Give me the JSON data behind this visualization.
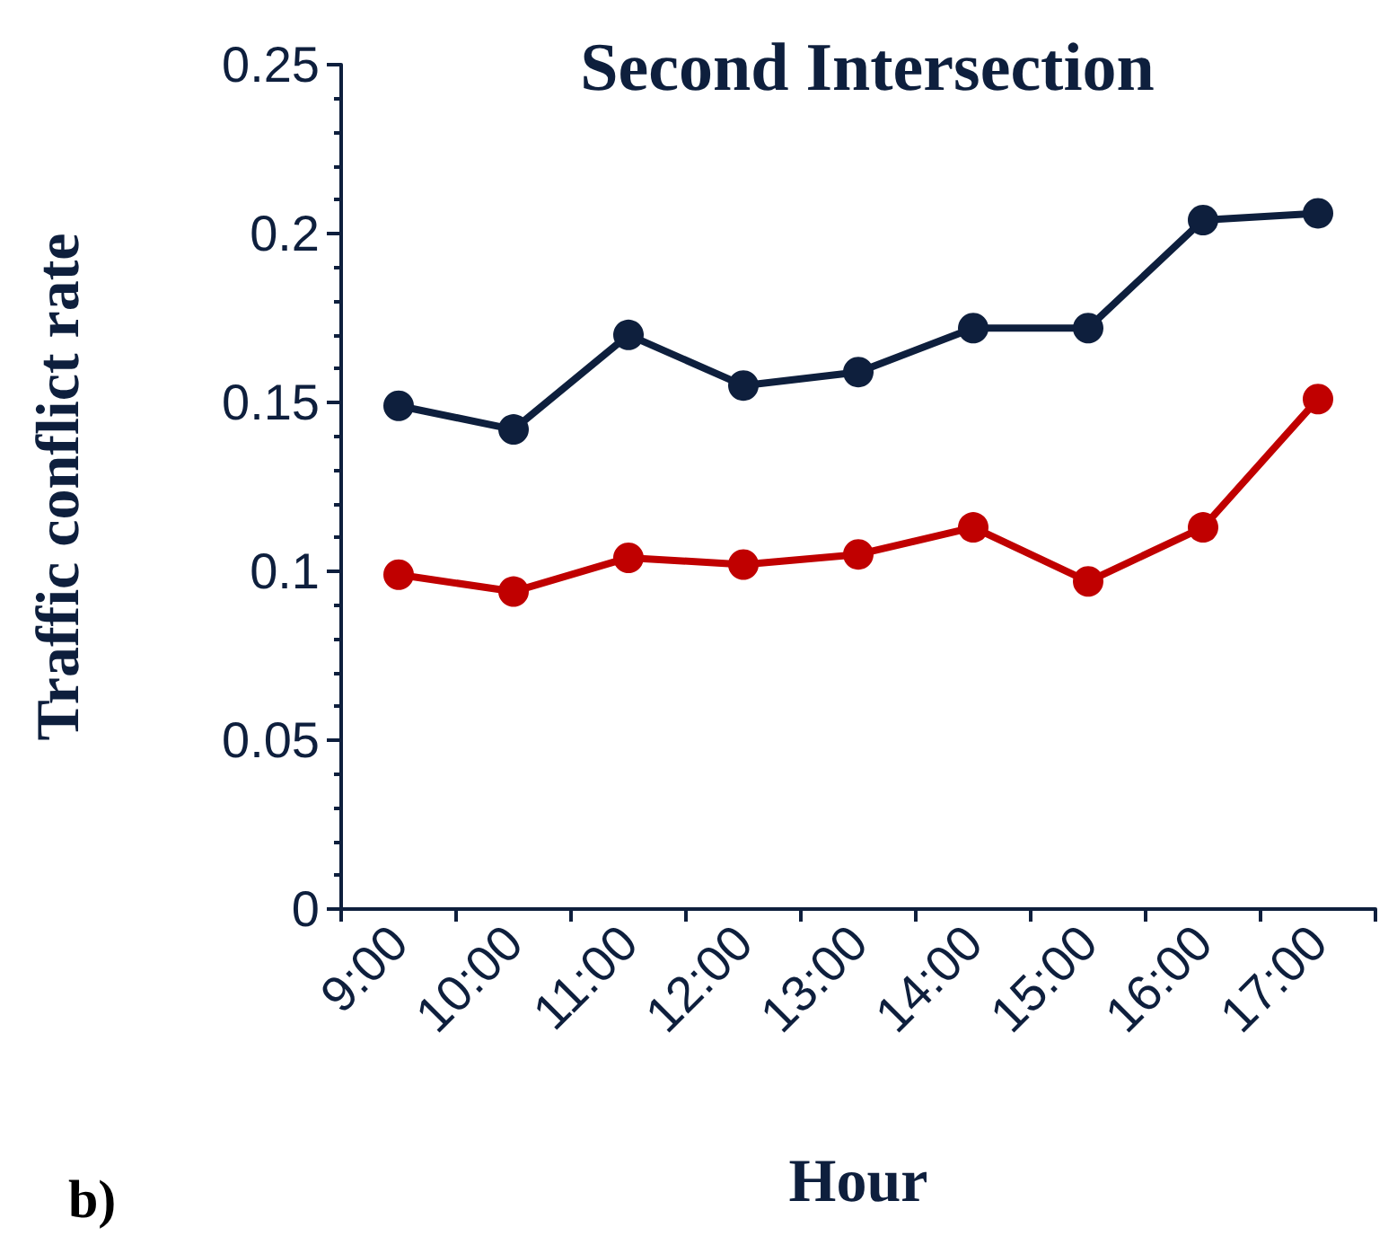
{
  "chart_data": {
    "type": "line",
    "title": "Second Intersection",
    "xlabel": "Hour",
    "ylabel": "Traffic conflict rate",
    "categories": [
      "9:00",
      "10:00",
      "11:00",
      "12:00",
      "13:00",
      "14:00",
      "15:00",
      "16:00",
      "17:00"
    ],
    "series": [
      {
        "color": "#0e1f3d",
        "values": [
          0.149,
          0.142,
          0.17,
          0.155,
          0.159,
          0.172,
          0.172,
          0.204,
          0.206
        ]
      },
      {
        "color": "#c00000",
        "values": [
          0.099,
          0.094,
          0.104,
          0.102,
          0.105,
          0.113,
          0.097,
          0.113,
          0.151
        ]
      }
    ],
    "ylim": [
      0,
      0.25
    ],
    "yticks": [
      0,
      0.05,
      0.1,
      0.15,
      0.2,
      0.25
    ],
    "grid": false,
    "marker": "circle",
    "line_style": "solid",
    "annotations": [
      "b)"
    ]
  }
}
